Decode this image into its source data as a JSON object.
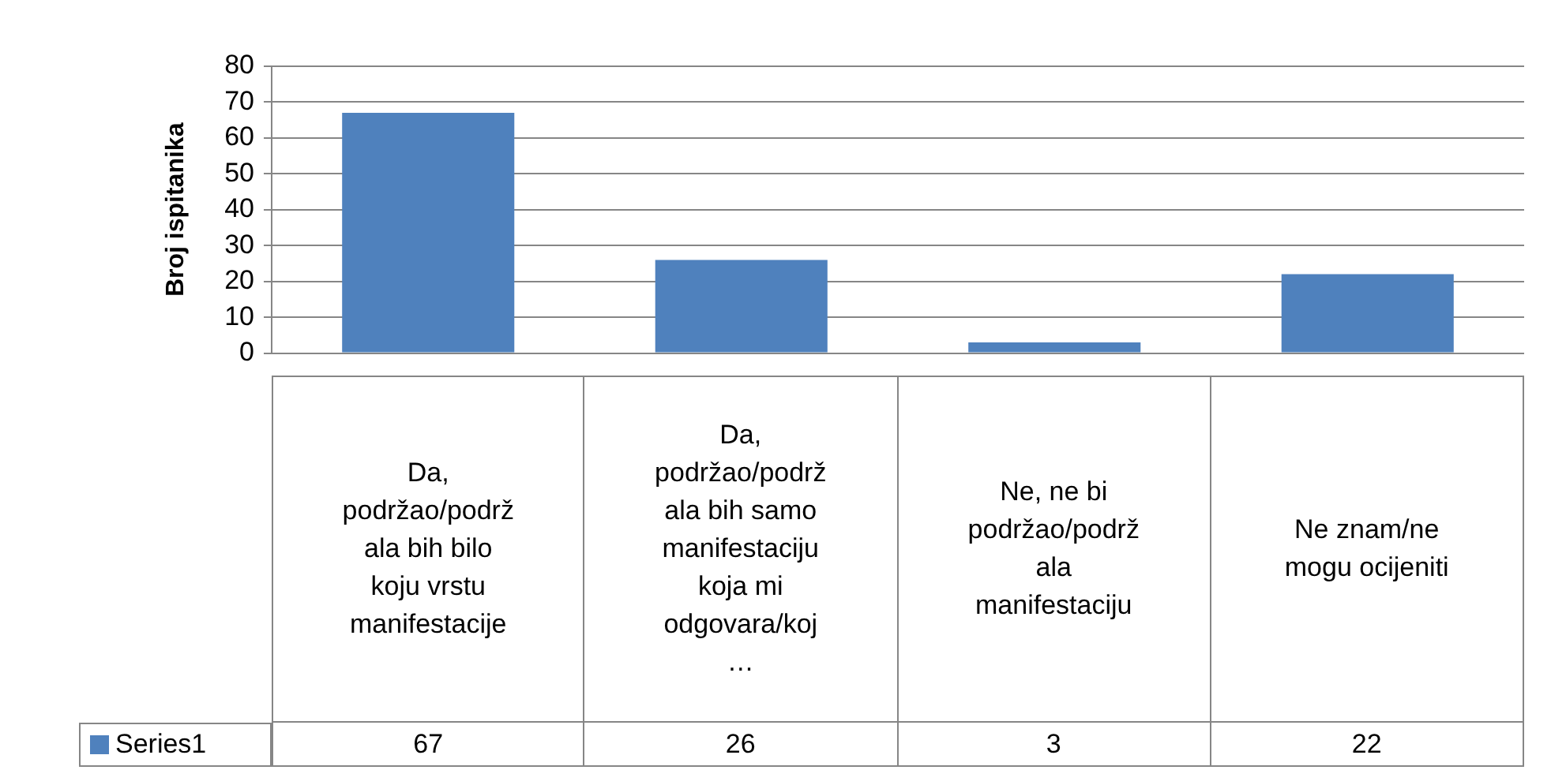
{
  "chart_data": {
    "type": "bar",
    "ylabel": "Broj ispitanika",
    "categories": [
      "Da, podržao/podržala bih bilo koju vrstu manifestacije",
      "Da, podržao/podržala bih samo manifestaciju koja mi odgovara/koj…",
      "Ne, ne bi podržao/podržala manifestaciju",
      "Ne znam/ne mogu ocijeniti"
    ],
    "series": [
      {
        "name": "Series1",
        "color": "#4f81bd",
        "values": [
          67,
          26,
          3,
          22
        ]
      }
    ],
    "ylim": [
      0,
      80
    ],
    "yticks": [
      0,
      10,
      20,
      30,
      40,
      50,
      60,
      70,
      80
    ],
    "grid": "y",
    "legend": "bottom",
    "data_labels": true
  }
}
